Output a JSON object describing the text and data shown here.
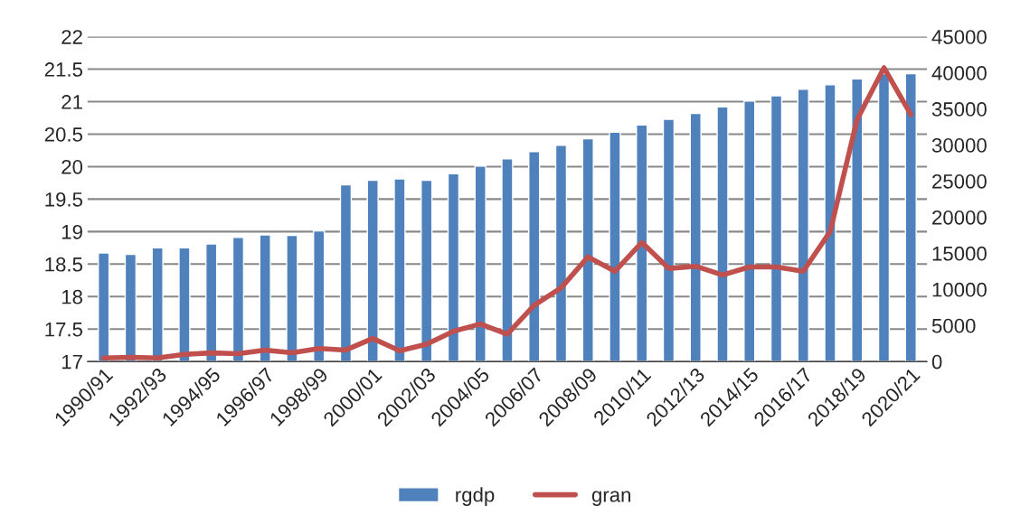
{
  "chart_data": {
    "type": "bar",
    "categories": [
      "1990/91",
      null,
      "1992/93",
      null,
      "1994/95",
      null,
      "1996/97",
      null,
      "1998/99",
      null,
      "2000/01",
      null,
      "2002/03",
      null,
      "2004/05",
      null,
      "2006/07",
      null,
      "2008/09",
      null,
      "2010/11",
      null,
      "2012/13",
      null,
      "2014/15",
      null,
      "2016/17",
      null,
      "2018/19",
      null,
      "2020/21"
    ],
    "series": [
      {
        "name": "rgdp",
        "color": "#4f81bd",
        "values": [
          18.67,
          18.65,
          18.75,
          18.75,
          18.81,
          18.91,
          18.95,
          18.94,
          19.01,
          19.72,
          19.79,
          19.81,
          19.79,
          19.89,
          20.01,
          20.12,
          20.23,
          20.33,
          20.43,
          20.53,
          20.64,
          20.73,
          20.82,
          20.92,
          21.01,
          21.09,
          21.19,
          21.26,
          21.35,
          21.43,
          21.43
        ]
      },
      {
        "name": "gran",
        "type": "line",
        "axis": "y2",
        "color": "#c0504d",
        "values": [
          500,
          600,
          500,
          1000,
          1200,
          1100,
          1600,
          1200,
          1800,
          1600,
          3200,
          1500,
          2400,
          4200,
          5200,
          3800,
          7800,
          10200,
          14500,
          12500,
          16500,
          12900,
          13200,
          12000,
          13100,
          13100,
          12500,
          18000,
          33500,
          40700,
          34200
        ]
      }
    ],
    "ylim": [
      17,
      22
    ],
    "yticks": [
      17,
      17.5,
      18,
      18.5,
      19,
      19.5,
      20,
      20.5,
      21,
      21.5,
      22
    ],
    "y2lim": [
      0,
      45000
    ],
    "y2ticks": [
      0,
      5000,
      10000,
      15000,
      20000,
      25000,
      30000,
      35000,
      40000,
      45000
    ],
    "grid": "y",
    "legend": "bottom",
    "marker": "none"
  }
}
